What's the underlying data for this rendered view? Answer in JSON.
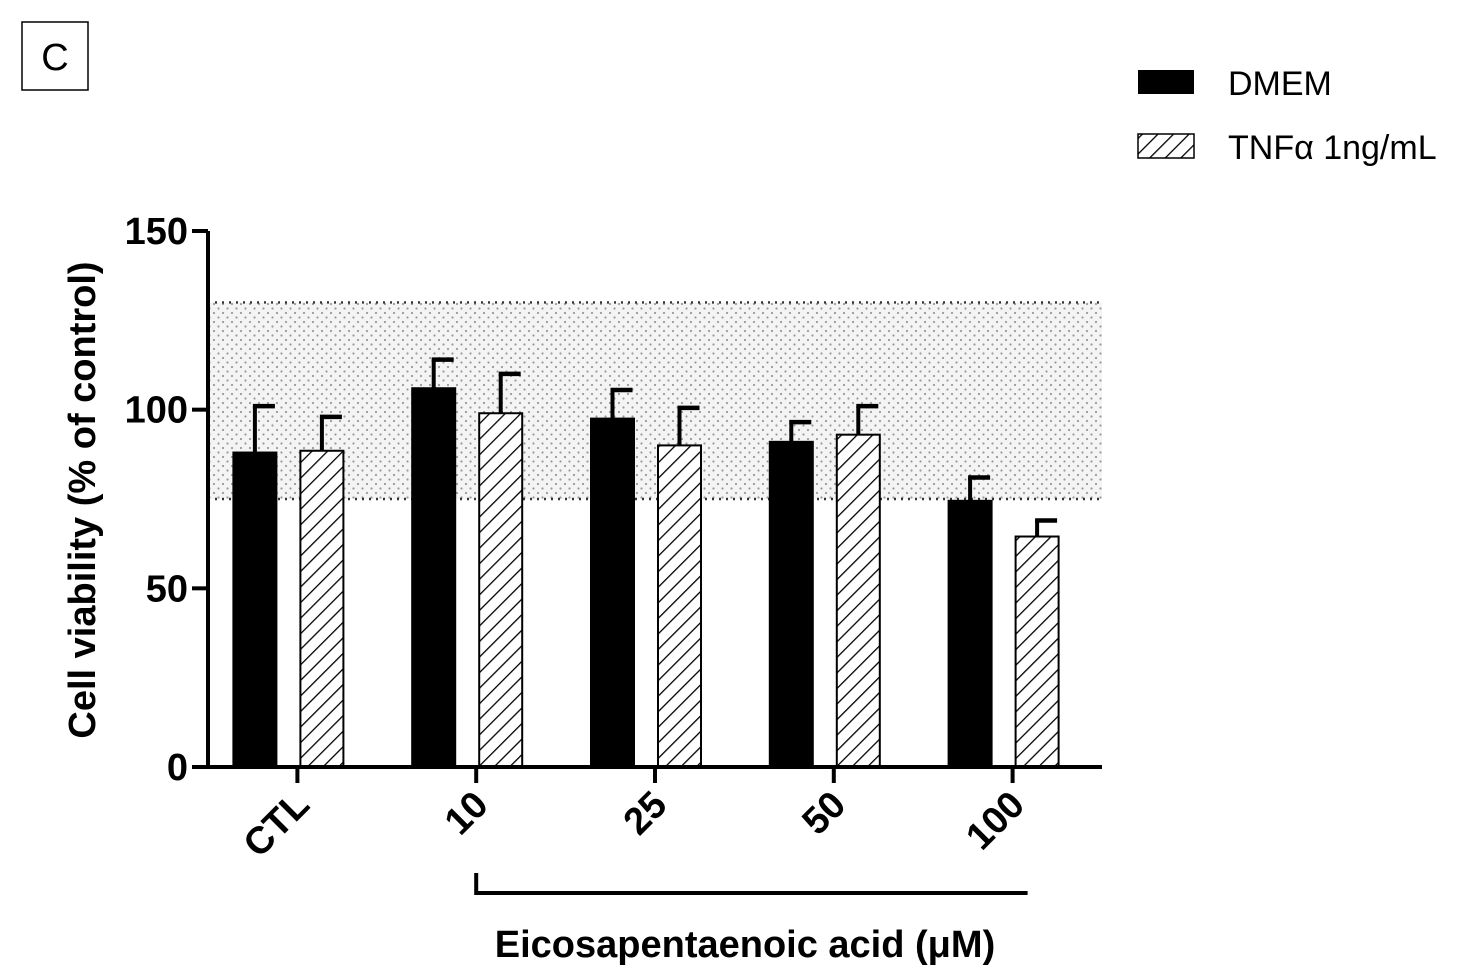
{
  "panel_label": "C",
  "chart_data": {
    "type": "bar",
    "categories": [
      "CTL",
      "10",
      "25",
      "50",
      "100"
    ],
    "series": [
      {
        "name": "DMEM",
        "values": [
          88,
          106,
          97.5,
          91,
          74.5
        ],
        "errors": [
          13,
          8,
          8,
          5.5,
          6.5
        ],
        "fill": "solid",
        "color": "#000000"
      },
      {
        "name": "TNFα 1ng/mL",
        "values": [
          88.5,
          99,
          90,
          93,
          64.5
        ],
        "errors": [
          9.5,
          11,
          10.5,
          8,
          4.5
        ],
        "fill": "hatched",
        "color": "#000000"
      }
    ],
    "ylabel": "Cell viability (% of control)",
    "xlabel": "Eicosapentaenoic acid (μM)",
    "ylim": [
      0,
      150
    ],
    "yticks": [
      "0",
      "50",
      "100",
      "150"
    ],
    "reference_band": [
      75,
      130
    ],
    "bracket_categories": [
      "10",
      "100"
    ],
    "legend_position": "top-right"
  }
}
